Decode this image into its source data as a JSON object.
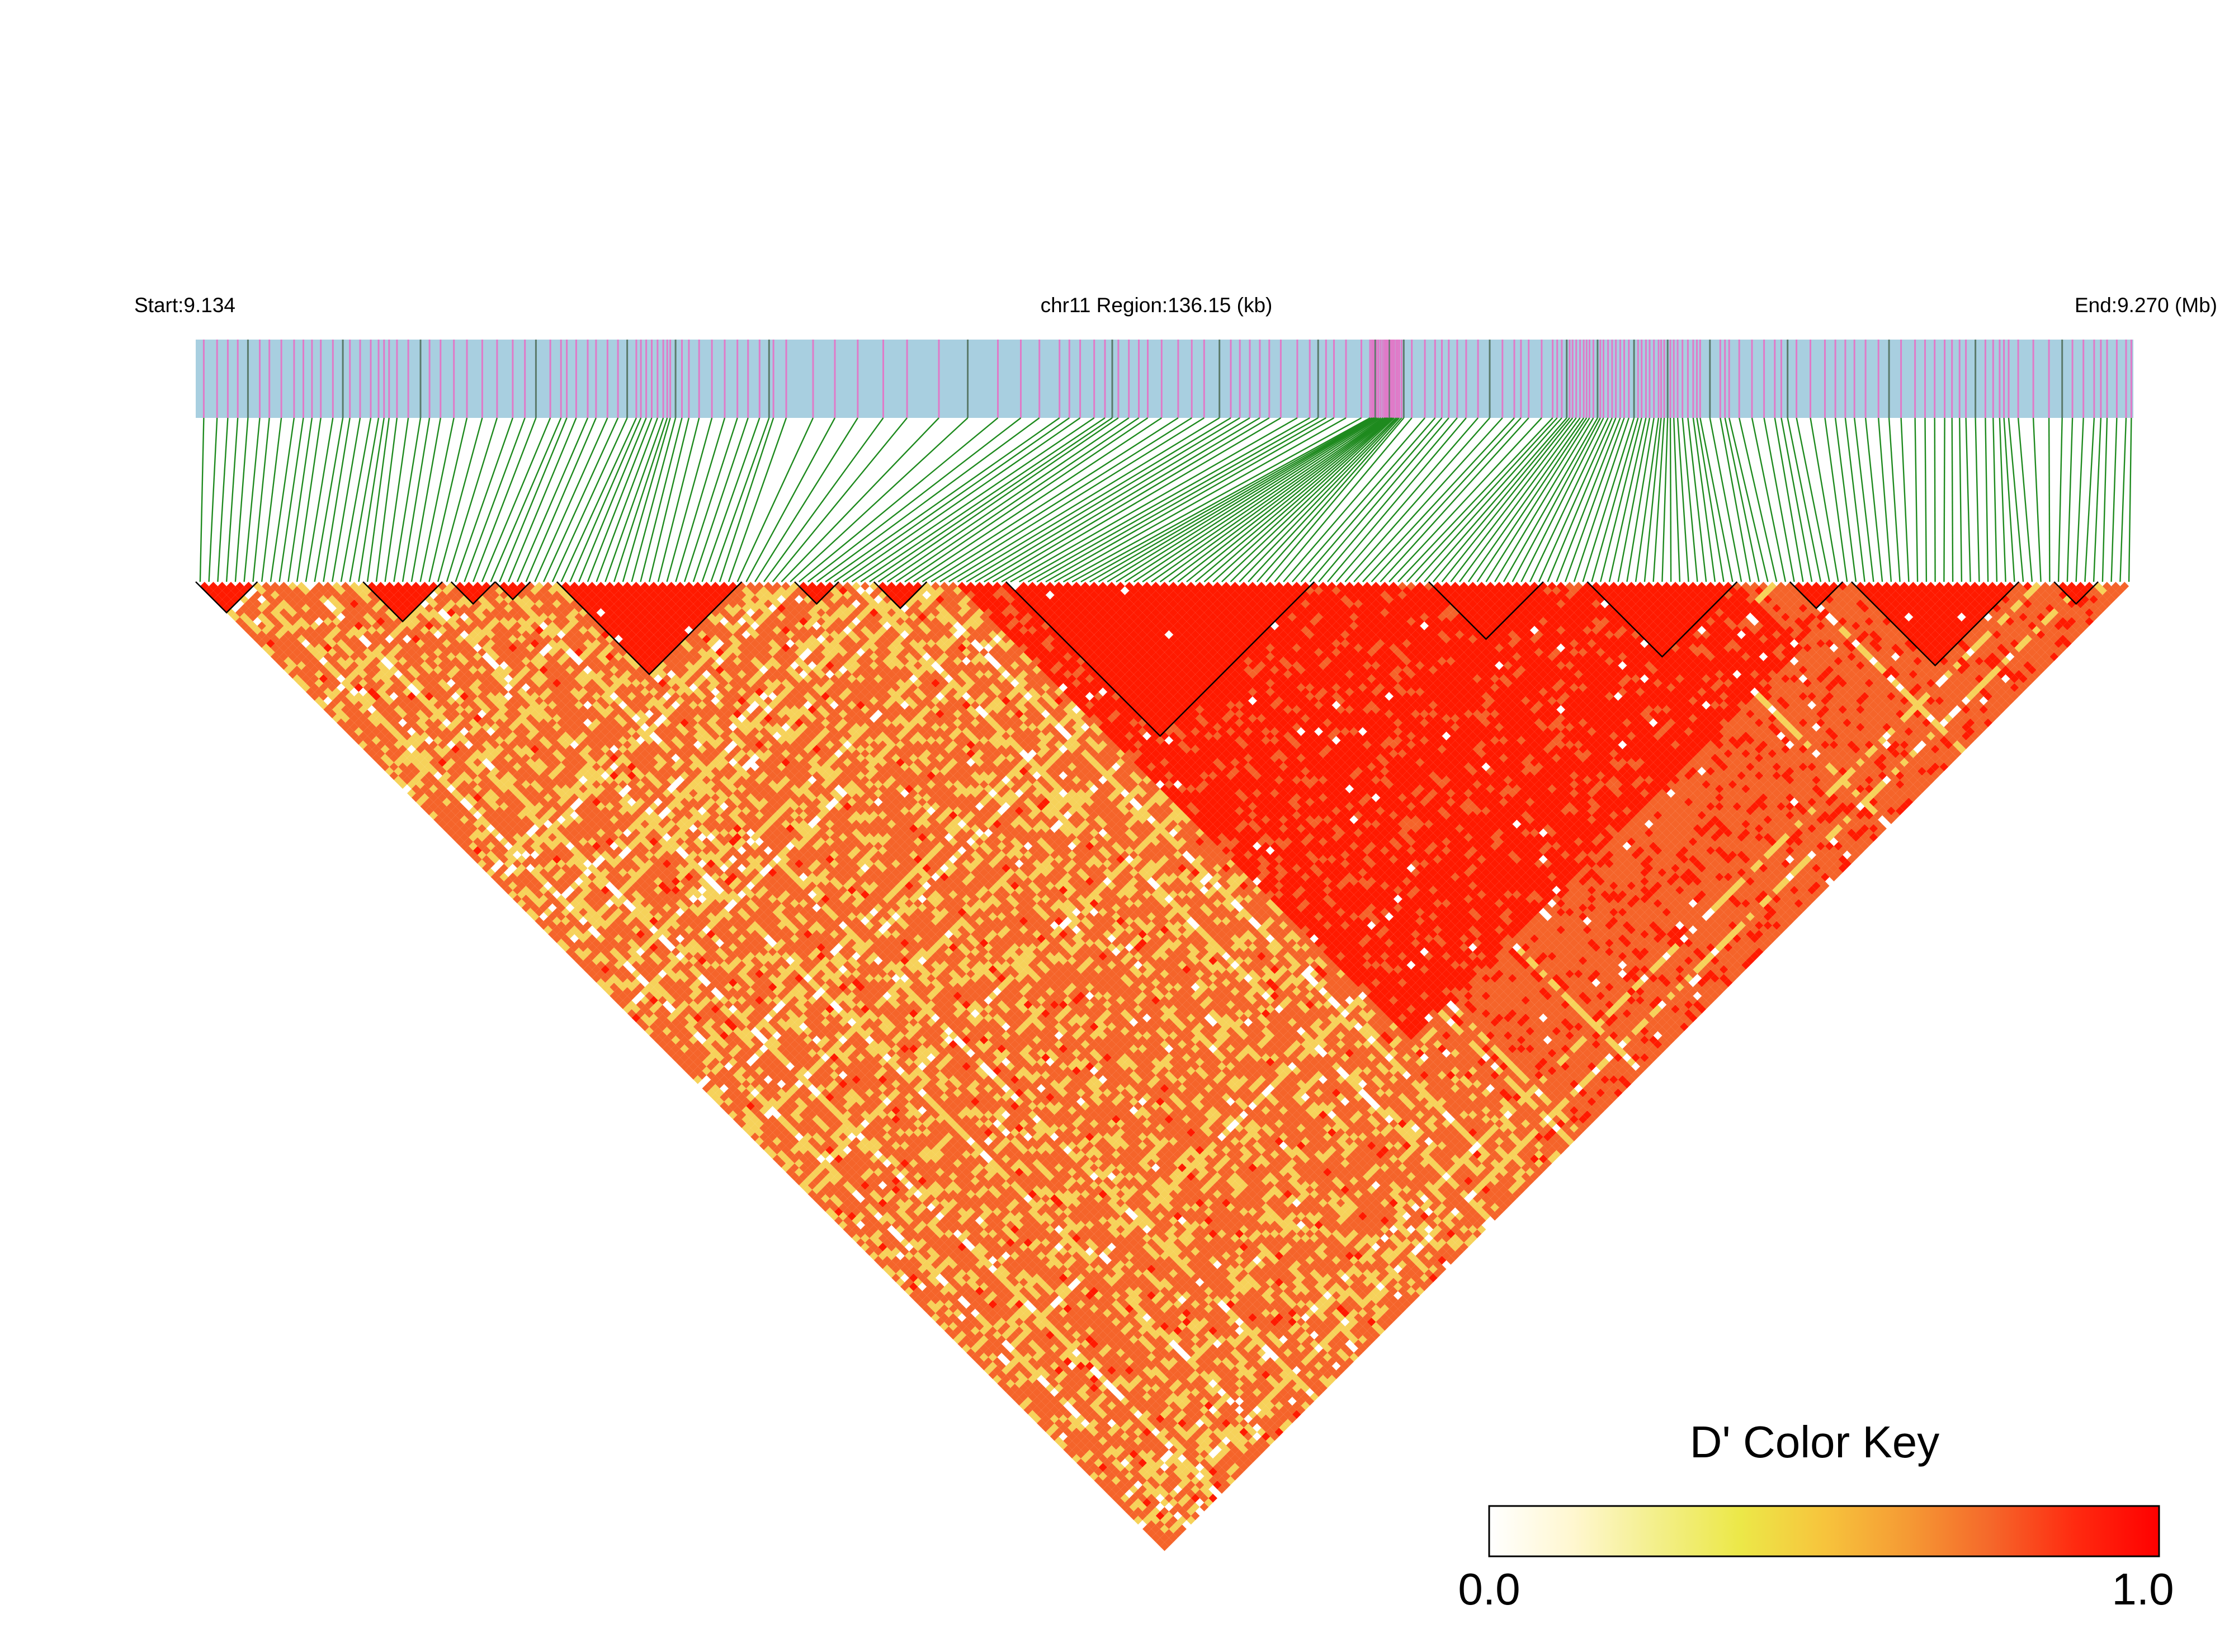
{
  "header": {
    "start_label": "Start:9.134",
    "region_label": "chr11 Region:136.15 (kb)",
    "end_label": "End:9.270 (Mb)"
  },
  "legend": {
    "title": "D' Color Key",
    "min_label": "0.0",
    "max_label": "1.0",
    "gradient_colors": [
      "#ffffff",
      "#fff7d0",
      "#f3ef8a",
      "#ece848",
      "#f7c43c",
      "#f59a34",
      "#f5672a",
      "#ff2a10",
      "#ff0000"
    ]
  },
  "colors": {
    "gene_track_fill": "#a8cfe0",
    "snp_tick_color": "#e07ac8",
    "snp_tick_dark_color": "#5a7a6a",
    "connector_line_color": "#1e8a1e",
    "ld_high": "#ff1a00",
    "ld_mid": "#f5642a",
    "ld_low": "#f6d25a",
    "ld_none": "#ffffff",
    "block_outline_color": "#000000"
  },
  "chart_data": {
    "type": "heatmap",
    "title": "chr11 Region:136.15 (kb)",
    "region_start_mb": 9.134,
    "region_end_mb": 9.27,
    "region_length_kb": 136.15,
    "metric": "D'",
    "value_range": [
      0.0,
      1.0
    ],
    "snp_count": 220,
    "ld_blocks": [
      {
        "first_snp": 0,
        "last_snp": 6
      },
      {
        "first_snp": 19,
        "last_snp": 27
      },
      {
        "first_snp": 29,
        "last_snp": 33
      },
      {
        "first_snp": 34,
        "last_snp": 37
      },
      {
        "first_snp": 41,
        "last_snp": 61
      },
      {
        "first_snp": 68,
        "last_snp": 72
      },
      {
        "first_snp": 77,
        "last_snp": 82
      },
      {
        "first_snp": 92,
        "last_snp": 126
      },
      {
        "first_snp": 140,
        "last_snp": 152
      },
      {
        "first_snp": 158,
        "last_snp": 174
      },
      {
        "first_snp": 181,
        "last_snp": 186
      },
      {
        "first_snp": 188,
        "last_snp": 206
      },
      {
        "first_snp": 211,
        "last_snp": 215
      }
    ]
  }
}
